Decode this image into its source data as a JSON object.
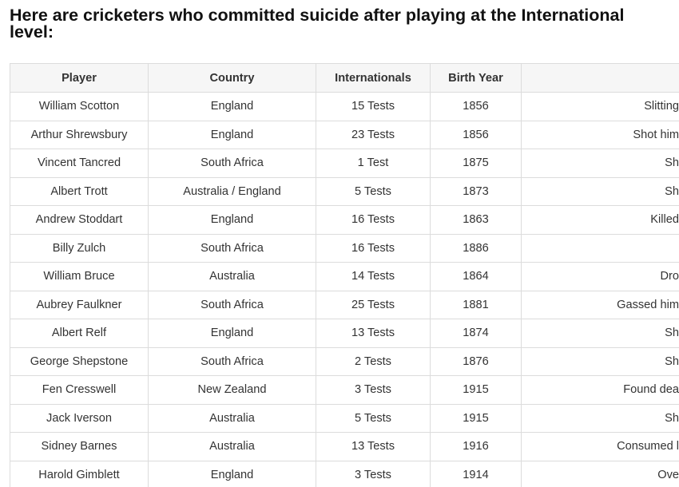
{
  "heading": "Here are cricketers who committed suicide after playing at the International level:",
  "table": {
    "headers": [
      "Player",
      "Country",
      "Internationals",
      "Birth Year",
      ""
    ],
    "rows": [
      [
        "William Scotton",
        "England",
        "15 Tests",
        "1856",
        "Slitting"
      ],
      [
        "Arthur Shrewsbury",
        "England",
        "23 Tests",
        "1856",
        "Shot him"
      ],
      [
        "Vincent Tancred",
        "South Africa",
        "1 Test",
        "1875",
        "Sh"
      ],
      [
        "Albert Trott",
        "Australia / England",
        "5 Tests",
        "1873",
        "Sh"
      ],
      [
        "Andrew Stoddart",
        "England",
        "16 Tests",
        "1863",
        "Killed"
      ],
      [
        "Billy Zulch",
        "South Africa",
        "16 Tests",
        "1886",
        ""
      ],
      [
        "William Bruce",
        "Australia",
        "14 Tests",
        "1864",
        "Dro"
      ],
      [
        "Aubrey Faulkner",
        "South Africa",
        "25 Tests",
        "1881",
        "Gassed him"
      ],
      [
        "Albert Relf",
        "England",
        "13 Tests",
        "1874",
        "Sh"
      ],
      [
        "George Shepstone",
        "South Africa",
        "2 Tests",
        "1876",
        "Sh"
      ],
      [
        "Fen Cresswell",
        "New Zealand",
        "3 Tests",
        "1915",
        "Found dea"
      ],
      [
        "Jack Iverson",
        "Australia",
        "5 Tests",
        "1915",
        "Sh"
      ],
      [
        "Sidney Barnes",
        "Australia",
        "13 Tests",
        "1916",
        "Consumed l"
      ],
      [
        "Harold Gimblett",
        "England",
        "3 Tests",
        "1914",
        "Ove"
      ]
    ]
  }
}
